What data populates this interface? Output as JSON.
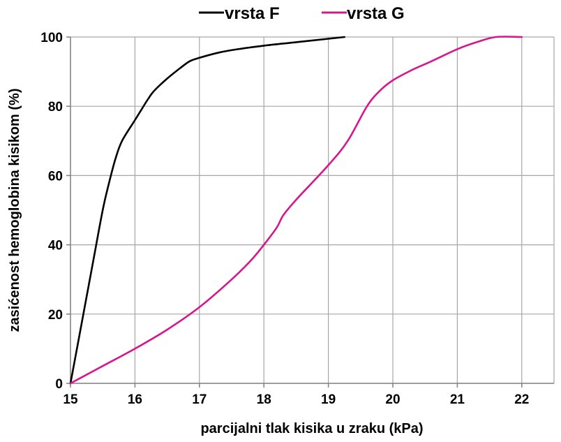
{
  "chart_data": {
    "type": "line",
    "title": "",
    "xlabel": "parcijalni tlak kisika u zraku (kPa)",
    "ylabel": "zasićenost hemoglobina kisikom (%)",
    "xlim": [
      15,
      22.5
    ],
    "ylim": [
      0,
      100
    ],
    "xticks": [
      15,
      16,
      17,
      18,
      19,
      20,
      21,
      22
    ],
    "yticks": [
      0,
      20,
      40,
      60,
      80,
      100
    ],
    "grid": true,
    "legend_position": "top-center",
    "series": [
      {
        "name": "vrsta F",
        "color": "#000000",
        "points": [
          [
            15.0,
            0
          ],
          [
            15.2,
            20
          ],
          [
            15.35,
            35
          ],
          [
            15.5,
            50
          ],
          [
            15.6,
            58
          ],
          [
            15.7,
            65
          ],
          [
            15.8,
            70
          ],
          [
            16.0,
            76
          ],
          [
            16.1,
            79
          ],
          [
            16.2,
            82
          ],
          [
            16.3,
            84.5
          ],
          [
            16.5,
            88
          ],
          [
            16.7,
            91
          ],
          [
            16.85,
            93
          ],
          [
            17.0,
            94
          ],
          [
            17.3,
            95.5
          ],
          [
            17.6,
            96.5
          ],
          [
            18.0,
            97.5
          ],
          [
            18.5,
            98.5
          ],
          [
            19.0,
            99.5
          ],
          [
            19.25,
            100
          ]
        ]
      },
      {
        "name": "vrsta G",
        "color": "#d6168c",
        "points": [
          [
            15.0,
            0
          ],
          [
            15.5,
            5
          ],
          [
            16.0,
            10
          ],
          [
            16.5,
            15.5
          ],
          [
            17.0,
            22
          ],
          [
            17.5,
            30
          ],
          [
            17.8,
            35.5
          ],
          [
            18.0,
            40
          ],
          [
            18.2,
            45
          ],
          [
            18.3,
            48.5
          ],
          [
            18.5,
            53
          ],
          [
            19.0,
            63
          ],
          [
            19.3,
            70
          ],
          [
            19.6,
            80
          ],
          [
            19.8,
            84.5
          ],
          [
            20.0,
            87.5
          ],
          [
            20.3,
            90.5
          ],
          [
            20.6,
            93
          ],
          [
            21.0,
            96.5
          ],
          [
            21.3,
            98.5
          ],
          [
            21.6,
            100
          ],
          [
            22.0,
            100
          ]
        ]
      }
    ]
  }
}
